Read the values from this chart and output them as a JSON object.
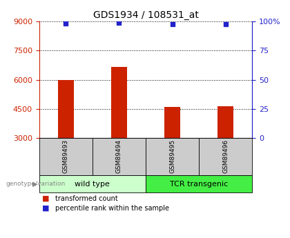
{
  "title": "GDS1934 / 108531_at",
  "samples": [
    "GSM89493",
    "GSM89494",
    "GSM89495",
    "GSM89496"
  ],
  "bar_values": [
    6000,
    6650,
    4600,
    4650
  ],
  "bar_baseline": 3000,
  "percentile_values": [
    98.5,
    99.0,
    97.5,
    97.8
  ],
  "ylim": [
    3000,
    9000
  ],
  "ylim_right": [
    0,
    100
  ],
  "yticks_left": [
    3000,
    4500,
    6000,
    7500,
    9000
  ],
  "yticks_right": [
    0,
    25,
    50,
    75,
    100
  ],
  "bar_color": "#cc2200",
  "dot_color": "#2222cc",
  "groups": [
    {
      "label": "wild type",
      "indices": [
        0,
        1
      ],
      "color": "#ccffcc"
    },
    {
      "label": "TCR transgenic",
      "indices": [
        2,
        3
      ],
      "color": "#44ee44"
    }
  ],
  "sample_cell_color": "#cccccc",
  "bar_width": 0.3,
  "legend_items": [
    {
      "label": "transformed count",
      "color": "#cc2200"
    },
    {
      "label": "percentile rank within the sample",
      "color": "#2222cc"
    }
  ],
  "genotype_label": "genotype/variation",
  "left_label_color": "#cc2200",
  "right_label_color": "#2222cc",
  "title_fontsize": 10,
  "tick_fontsize": 8,
  "sample_fontsize": 6.5,
  "group_fontsize": 8
}
